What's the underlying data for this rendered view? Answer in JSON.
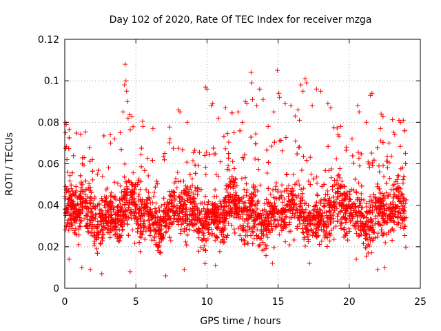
{
  "chart_data": {
    "type": "scatter",
    "title": "Day 102 of 2020, Rate Of TEC Index for receiver mzga",
    "xlabel": "GPS time / hours",
    "ylabel": "ROTI / TECUs",
    "xlim": [
      0,
      25
    ],
    "ylim": [
      0,
      0.12
    ],
    "xticks": [
      0,
      5,
      10,
      15,
      20,
      25
    ],
    "xtick_labels": [
      "0",
      "5",
      "10",
      "15",
      "20",
      "25"
    ],
    "yticks": [
      0,
      0.02,
      0.04,
      0.06,
      0.08,
      0.1,
      0.12
    ],
    "ytick_labels": [
      "0",
      "0.02",
      "0.04",
      "0.06",
      "0.08",
      "0.1",
      "0.12"
    ],
    "grid": true,
    "marker": "plus",
    "color": "#ff0000",
    "series": [
      {
        "points": [
          [
            0.02,
            0.08
          ],
          [
            0.05,
            0.075
          ],
          [
            0.1,
            0.079
          ],
          [
            0.15,
            0.062
          ],
          [
            0.2,
            0.056
          ],
          [
            4.25,
            0.108
          ],
          [
            4.3,
            0.1
          ],
          [
            4.2,
            0.098
          ],
          [
            4.35,
            0.095
          ],
          [
            4.4,
            0.09
          ],
          [
            4.45,
            0.082
          ],
          [
            4.1,
            0.085
          ],
          [
            3.2,
            0.074
          ],
          [
            3.5,
            0.072
          ],
          [
            3.9,
            0.075
          ],
          [
            2.6,
            0.007
          ],
          [
            1.2,
            0.01
          ],
          [
            4.6,
            0.008
          ],
          [
            5.5,
            0.078
          ],
          [
            6.2,
            0.077
          ],
          [
            7.1,
            0.006
          ],
          [
            7.4,
            0.072
          ],
          [
            8.0,
            0.086
          ],
          [
            8.1,
            0.085
          ],
          [
            8.6,
            0.08
          ],
          [
            9.9,
            0.097
          ],
          [
            10.0,
            0.096
          ],
          [
            10.3,
            0.088
          ],
          [
            10.4,
            0.089
          ],
          [
            10.8,
            0.082
          ],
          [
            11.3,
            0.087
          ],
          [
            11.9,
            0.075
          ],
          [
            12.2,
            0.085
          ],
          [
            12.5,
            0.08
          ],
          [
            12.7,
            0.09
          ],
          [
            12.8,
            0.089
          ],
          [
            13.1,
            0.104
          ],
          [
            13.15,
            0.099
          ],
          [
            13.2,
            0.091
          ],
          [
            13.5,
            0.088
          ],
          [
            13.7,
            0.096
          ],
          [
            13.95,
            0.091
          ],
          [
            14.3,
            0.078
          ],
          [
            14.7,
            0.085
          ],
          [
            14.95,
            0.105
          ],
          [
            15.05,
            0.094
          ],
          [
            15.1,
            0.092
          ],
          [
            15.5,
            0.089
          ],
          [
            15.9,
            0.088
          ],
          [
            16.2,
            0.083
          ],
          [
            16.4,
            0.086
          ],
          [
            16.5,
            0.081
          ],
          [
            16.6,
            0.098
          ],
          [
            16.75,
            0.095
          ],
          [
            16.9,
            0.101
          ],
          [
            17.0,
            0.099
          ],
          [
            17.4,
            0.088
          ],
          [
            17.7,
            0.096
          ],
          [
            18.0,
            0.095
          ],
          [
            18.5,
            0.089
          ],
          [
            18.7,
            0.087
          ],
          [
            19.2,
            0.074
          ],
          [
            19.4,
            0.078
          ],
          [
            19.8,
            0.068
          ],
          [
            20.2,
            0.072
          ],
          [
            20.6,
            0.088
          ],
          [
            20.7,
            0.085
          ],
          [
            21.2,
            0.08
          ],
          [
            21.5,
            0.093
          ],
          [
            21.6,
            0.094
          ],
          [
            22.2,
            0.077
          ],
          [
            22.8,
            0.07
          ],
          [
            23.2,
            0.074
          ],
          [
            23.5,
            0.081
          ],
          [
            23.6,
            0.08
          ],
          [
            23.8,
            0.081
          ],
          [
            23.9,
            0.076
          ],
          [
            22.0,
            0.009
          ],
          [
            22.5,
            0.01
          ],
          [
            17.2,
            0.012
          ],
          [
            20.5,
            0.014
          ],
          [
            14.6,
            0.012
          ],
          [
            10.6,
            0.011
          ],
          [
            8.4,
            0.009
          ],
          [
            1.8,
            0.009
          ],
          [
            0.3,
            0.014
          ]
        ],
        "bulk": {
          "x_range": [
            0,
            24
          ],
          "y_center": 0.036,
          "y_spread_typical": [
            0.015,
            0.062
          ],
          "notes": "dense cloud of observations; visible peaks listed in points"
        }
      }
    ]
  }
}
